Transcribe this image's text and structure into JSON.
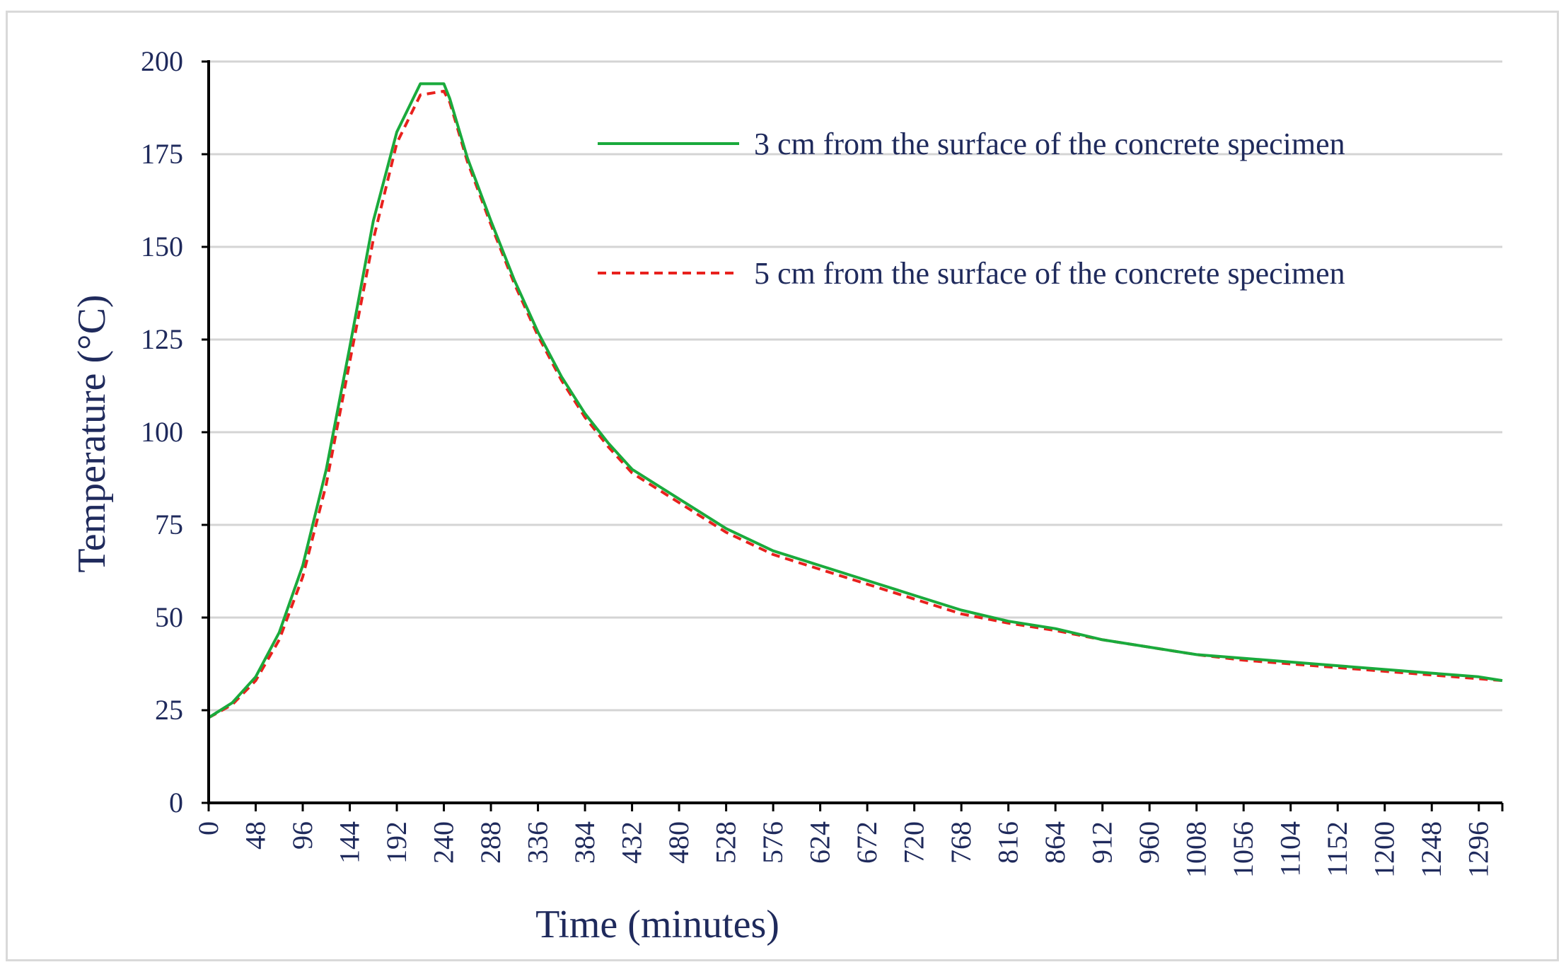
{
  "chart_data": {
    "type": "line",
    "xlabel": "Time (minutes)",
    "ylabel": "Temperature (°C)",
    "xlim": [
      0,
      1320
    ],
    "ylim": [
      0,
      200
    ],
    "y_ticks": [
      0,
      25,
      50,
      75,
      100,
      125,
      150,
      175,
      200
    ],
    "x_ticks": [
      0,
      48,
      96,
      144,
      192,
      240,
      288,
      336,
      384,
      432,
      480,
      528,
      576,
      624,
      672,
      720,
      768,
      816,
      864,
      912,
      960,
      1008,
      1056,
      1104,
      1152,
      1200,
      1248,
      1296
    ],
    "grid": "horizontal",
    "legend_position": "top-right",
    "x": [
      0,
      24,
      48,
      72,
      96,
      120,
      144,
      168,
      192,
      216,
      240,
      246,
      264,
      288,
      312,
      336,
      360,
      384,
      408,
      432,
      480,
      528,
      576,
      624,
      672,
      720,
      768,
      816,
      864,
      912,
      960,
      1008,
      1056,
      1104,
      1152,
      1200,
      1248,
      1296,
      1320
    ],
    "series": [
      {
        "name": "3 cm from the surface of the concrete specimen",
        "color": "#1aaa3c",
        "style": "solid",
        "values": [
          23,
          27,
          34,
          46,
          64,
          90,
          123,
          157,
          181,
          194,
          194,
          190,
          174,
          157,
          141,
          127,
          115,
          105,
          97,
          90,
          82,
          74,
          68,
          64,
          60,
          56,
          52,
          49,
          47,
          44,
          42,
          40,
          39,
          38,
          37,
          36,
          35,
          34,
          33
        ]
      },
      {
        "name": "5 cm from the surface of the concrete specimen",
        "color": "#e8211d",
        "style": "dashed",
        "values": [
          23,
          26.5,
          33,
          44,
          61,
          86,
          119,
          152,
          178,
          191,
          192,
          189,
          173,
          156,
          140,
          126,
          114,
          104,
          96,
          89,
          81,
          73,
          67,
          63,
          59,
          55,
          51,
          48.5,
          46.5,
          44,
          42,
          40,
          38.5,
          37.5,
          36.5,
          35.5,
          34.5,
          33.5,
          33
        ]
      }
    ]
  }
}
